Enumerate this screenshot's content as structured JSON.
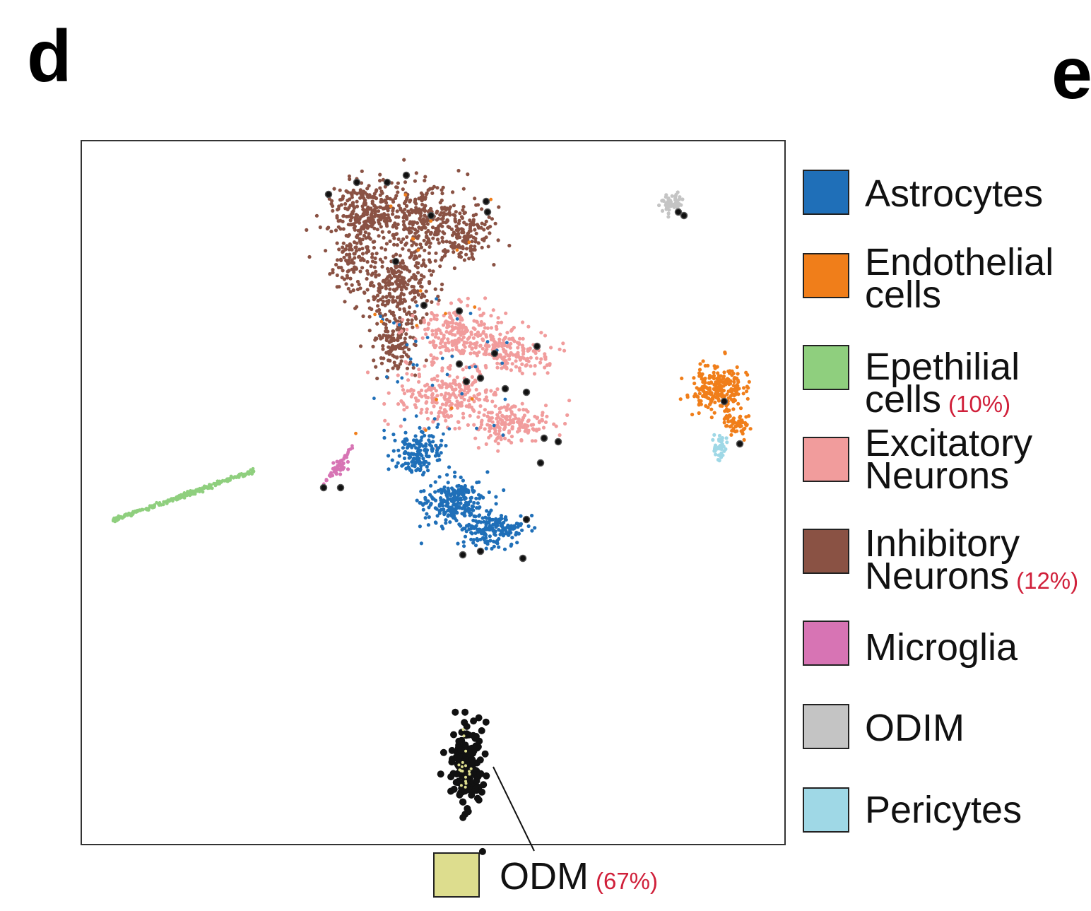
{
  "panel_labels": {
    "left": "d",
    "right": "e"
  },
  "chart_data": {
    "type": "scatter",
    "title": "",
    "xlabel": "",
    "ylabel": "",
    "axes_visible": false,
    "grid": false,
    "legend_position": "right",
    "series": [
      {
        "key": "astro",
        "label_lines": [
          "Astrocytes"
        ],
        "pct": "",
        "color": "#1f6fb8"
      },
      {
        "key": "endo",
        "label_lines": [
          "Endothelial",
          "cells"
        ],
        "pct": "",
        "color": "#f07e1a"
      },
      {
        "key": "epi",
        "label_lines": [
          "Epethilial",
          "cells"
        ],
        "pct": "(10%)",
        "color": "#8fcf7e"
      },
      {
        "key": "exc",
        "label_lines": [
          "Excitatory",
          "Neurons"
        ],
        "pct": "",
        "color": "#f19c9c"
      },
      {
        "key": "inh",
        "label_lines": [
          "Inhibitory",
          "Neurons"
        ],
        "pct": "(12%)",
        "color": "#8a5244"
      },
      {
        "key": "micro",
        "label_lines": [
          "Microglia"
        ],
        "pct": "",
        "color": "#d774b4"
      },
      {
        "key": "odim",
        "label_lines": [
          "ODIM"
        ],
        "pct": "",
        "color": "#c4c4c4"
      },
      {
        "key": "peri",
        "label_lines": [
          "Pericytes"
        ],
        "pct": "",
        "color": "#9fd8e6"
      }
    ],
    "highlight": {
      "label": "ODM",
      "pct": "(67%)",
      "swatch_color": "#dddd8e",
      "point_color": "#111111"
    }
  }
}
